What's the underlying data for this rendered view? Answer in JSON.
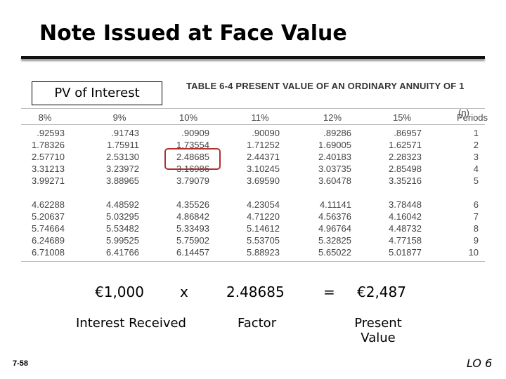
{
  "title": "Note Issued at Face Value",
  "callout": "PV of Interest",
  "table": {
    "caption": "TABLE 6-4   PRESENT VALUE OF AN ORDINARY ANNUITY OF 1",
    "periods_symbol": "(n)",
    "columns": [
      "8%",
      "9%",
      "10%",
      "11%",
      "12%",
      "15%",
      "Periods"
    ],
    "rows": [
      [
        ".92593",
        ".91743",
        ".90909",
        ".90090",
        ".89286",
        ".86957",
        "1"
      ],
      [
        "1.78326",
        "1.75911",
        "1.73554",
        "1.71252",
        "1.69005",
        "1.62571",
        "2"
      ],
      [
        "2.57710",
        "2.53130",
        "2.48685",
        "2.44371",
        "2.40183",
        "2.28323",
        "3"
      ],
      [
        "3.31213",
        "3.23972",
        "3.16986",
        "3.10245",
        "3.03735",
        "2.85498",
        "4"
      ],
      [
        "3.99271",
        "3.88965",
        "3.79079",
        "3.69590",
        "3.60478",
        "3.35216",
        "5"
      ],
      [
        "4.62288",
        "4.48592",
        "4.35526",
        "4.23054",
        "4.11141",
        "3.78448",
        "6"
      ],
      [
        "5.20637",
        "5.03295",
        "4.86842",
        "4.71220",
        "4.56376",
        "4.16042",
        "7"
      ],
      [
        "5.74664",
        "5.53482",
        "5.33493",
        "5.14612",
        "4.96764",
        "4.48732",
        "8"
      ],
      [
        "6.24689",
        "5.99525",
        "5.75902",
        "5.53705",
        "5.32825",
        "4.77158",
        "9"
      ],
      [
        "6.71008",
        "6.41766",
        "6.14457",
        "5.88923",
        "5.65022",
        "5.01877",
        "10"
      ]
    ]
  },
  "formula": {
    "amount": "€1,000",
    "times": "x",
    "factor": "2.48685",
    "equals": "=",
    "result": "€2,487",
    "amount_label": "Interest Received",
    "factor_label": "Factor",
    "result_label": "Present Value"
  },
  "footer": {
    "slide_number": "7-58",
    "objective": "LO 6"
  }
}
